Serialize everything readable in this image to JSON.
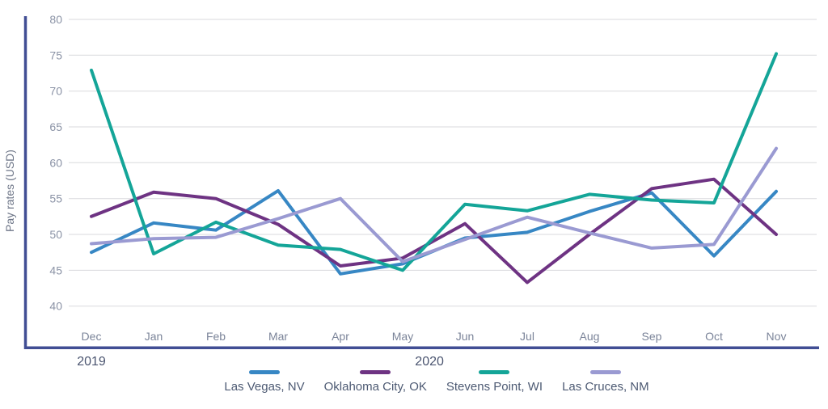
{
  "chart_data": {
    "type": "line",
    "title": "",
    "xlabel": "",
    "ylabel": "Pay rates (USD)",
    "ylim": [
      40,
      80
    ],
    "ytick_step": 5,
    "grid": true,
    "legend_position": "bottom",
    "categories": [
      "Dec",
      "Jan",
      "Feb",
      "Mar",
      "Apr",
      "May",
      "Jun",
      "Jul",
      "Aug",
      "Sep",
      "Oct",
      "Nov"
    ],
    "year_labels": [
      {
        "label": "2019",
        "month_index": 0
      },
      {
        "label": "2020",
        "month_index": 5.43
      }
    ],
    "series": [
      {
        "name": "Las Vegas, NV",
        "color": "#3787c4",
        "values": [
          47.5,
          51.6,
          50.6,
          56.1,
          44.5,
          45.9,
          49.5,
          50.3,
          53.2,
          55.8,
          47.0,
          56.0
        ]
      },
      {
        "name": "Oklahoma City, OK",
        "color": "#6e3383",
        "values": [
          52.5,
          55.9,
          55.0,
          51.4,
          45.6,
          46.7,
          51.5,
          43.3,
          50.0,
          56.4,
          57.7,
          50.0
        ]
      },
      {
        "name": "Stevens Point, WI",
        "color": "#14a598",
        "values": [
          72.9,
          47.3,
          51.7,
          48.5,
          47.9,
          45.0,
          54.2,
          53.3,
          55.6,
          54.8,
          54.4,
          75.2
        ]
      },
      {
        "name": "Las Cruces, NM",
        "color": "#9a9ad2",
        "values": [
          48.7,
          49.4,
          49.6,
          52.2,
          55.0,
          46.2,
          49.3,
          52.4,
          50.2,
          48.1,
          48.6,
          62.0
        ]
      }
    ],
    "style": {
      "axis_color": "#414e94",
      "gridline_color": "#d9dade",
      "tick_label_color": "#8b93a6",
      "month_label_color": "#7b8499",
      "year_label_color": "#4b5570",
      "ylabel_color": "#6e7688"
    }
  }
}
